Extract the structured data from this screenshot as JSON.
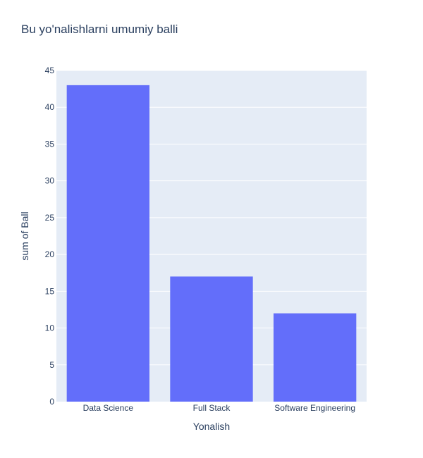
{
  "chart_data": {
    "type": "bar",
    "title": "Bu yo'nalishlarni umumiy balli",
    "xlabel": "Yonalish",
    "ylabel": "sum of Ball",
    "categories": [
      "Data Science",
      "Full Stack",
      "Software Engineering"
    ],
    "values": [
      43,
      17,
      12
    ],
    "ylim": [
      0,
      45
    ],
    "yticks": [
      0,
      5,
      10,
      15,
      20,
      25,
      30,
      35,
      40,
      45
    ],
    "grid": true,
    "colors": {
      "bar": "#636efa",
      "plot_bg": "#e5ecf6",
      "grid": "#ffffff",
      "text": "#2a3f5f"
    }
  }
}
